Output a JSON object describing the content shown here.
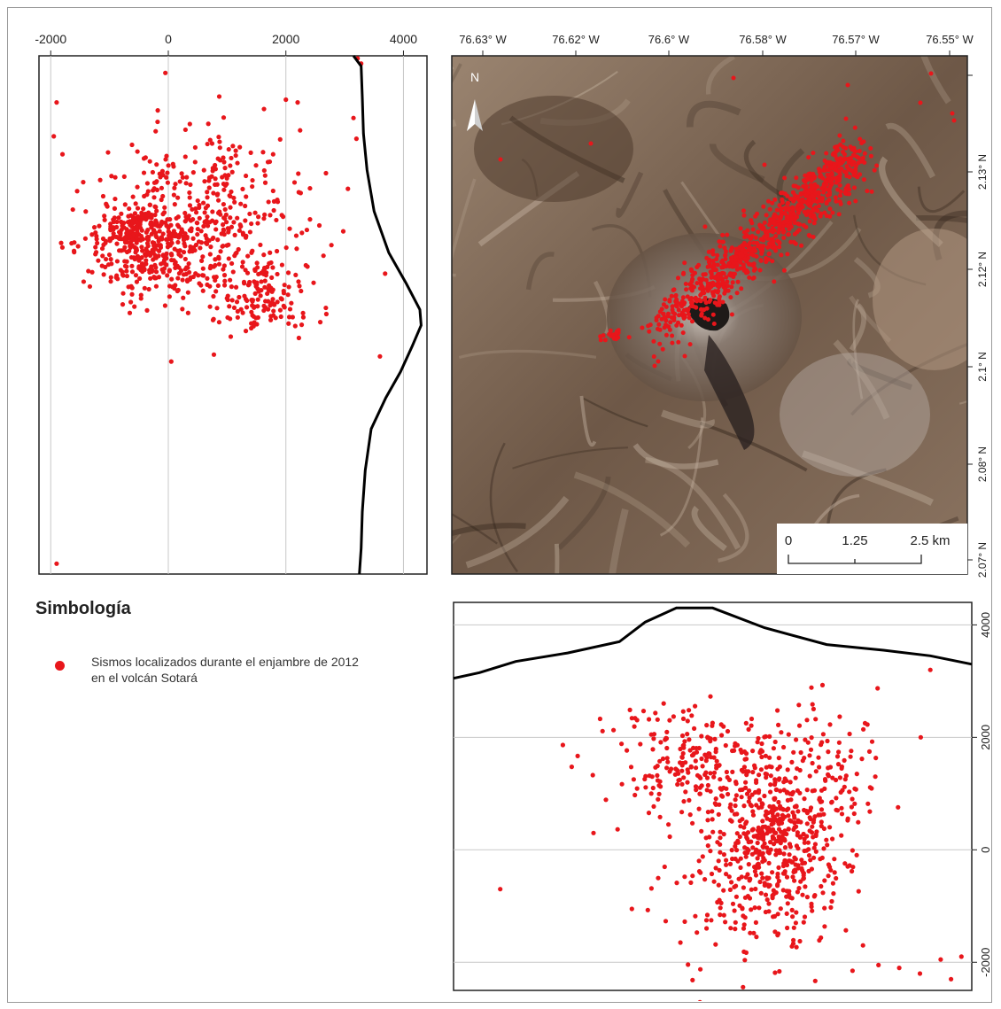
{
  "map": {
    "lon_labels": [
      "76.63° W",
      "76.62° W",
      "76.6° W",
      "76.58° W",
      "76.57° W",
      "76.55° W"
    ],
    "lat_labels": [
      "2.13° N",
      "2.12° N",
      "2.1° N",
      "2.08° N",
      "2.07° N"
    ],
    "north_label": "N",
    "scale": {
      "labels": [
        "0",
        "1.25",
        "2.5 km"
      ]
    },
    "colors": {
      "relief_dark": "#3a2a1e",
      "relief_light": "#a08a72",
      "event": "#e8161b"
    }
  },
  "chart_data": [
    {
      "type": "scatter",
      "panel": "west-east depth section (left)",
      "x_axis_ticks": [
        -2000,
        0,
        2000,
        4000
      ],
      "xlim": [
        -2200,
        4400
      ],
      "grid": true,
      "topography_profile": [
        [
          3150,
          0
        ],
        [
          3280,
          0.02
        ],
        [
          3300,
          0.08
        ],
        [
          3320,
          0.15
        ],
        [
          3380,
          0.22
        ],
        [
          3500,
          0.3
        ],
        [
          3750,
          0.38
        ],
        [
          4050,
          0.44
        ],
        [
          4280,
          0.49
        ],
        [
          4300,
          0.52
        ],
        [
          4150,
          0.56
        ],
        [
          3950,
          0.61
        ],
        [
          3700,
          0.66
        ],
        [
          3450,
          0.72
        ],
        [
          3350,
          0.8
        ],
        [
          3300,
          0.88
        ],
        [
          3280,
          0.95
        ],
        [
          3250,
          1.0
        ]
      ],
      "series": [
        {
          "cluster_center": [
            500,
            0.35
          ],
          "count": 900
        }
      ]
    },
    {
      "type": "scatter",
      "panel": "south-north depth section (bottom)",
      "y_axis_ticks": [
        4000,
        2000,
        0,
        -2000
      ],
      "ylim": [
        -2500,
        4400
      ],
      "grid": true,
      "topography_profile": [
        [
          0,
          3050
        ],
        [
          0.05,
          3150
        ],
        [
          0.12,
          3350
        ],
        [
          0.22,
          3500
        ],
        [
          0.32,
          3700
        ],
        [
          0.37,
          4050
        ],
        [
          0.43,
          4300
        ],
        [
          0.5,
          4300
        ],
        [
          0.6,
          3950
        ],
        [
          0.72,
          3650
        ],
        [
          0.83,
          3550
        ],
        [
          0.92,
          3450
        ],
        [
          1.0,
          3300
        ]
      ],
      "series": [
        {
          "cluster_center": [
            0.6,
            200
          ],
          "count": 900
        }
      ]
    }
  ],
  "legend": {
    "title": "Simbología",
    "item_line1": "Sismos localizados durante el enjambre de 2012",
    "item_line2": "en el volcán Sotará"
  }
}
